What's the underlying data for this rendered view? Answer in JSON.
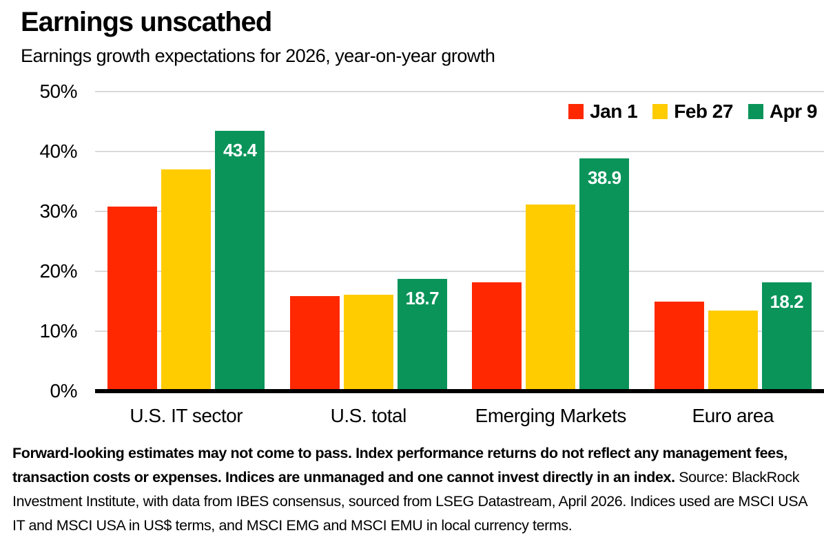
{
  "header": {
    "title": "Earnings unscathed",
    "subtitle": "Earnings growth expectations for 2026, year-on-year growth"
  },
  "chart_data": {
    "type": "bar",
    "title": "Earnings unscathed",
    "subtitle": "Earnings growth expectations for 2026, year-on-year growth",
    "categories": [
      "U.S. IT sector",
      "U.S. total",
      "Emerging Markets",
      "Euro area"
    ],
    "series": [
      {
        "name": "Jan 1",
        "color": "#FF2800",
        "values": [
          30.8,
          15.9,
          18.2,
          15.0
        ]
      },
      {
        "name": "Feb 27",
        "color": "#FFCC00",
        "values": [
          37.0,
          16.1,
          31.2,
          13.4
        ]
      },
      {
        "name": "Apr 9",
        "color": "#0A945A",
        "values": [
          43.4,
          18.7,
          38.9,
          18.2
        ],
        "labeled": true,
        "labels": [
          "43.4",
          "18.7",
          "38.9",
          "18.2"
        ],
        "label_color": "#ffffff"
      }
    ],
    "ylabel": "",
    "xlabel": "",
    "ylim": [
      0,
      50
    ],
    "yticks": [
      0,
      10,
      20,
      30,
      40,
      50
    ],
    "ytick_suffix": "%",
    "grid": true,
    "gridline_color": "#d9d9d9",
    "axis_line_color": "#000000",
    "legend_position": "top-right"
  },
  "footnote": {
    "disclaimer": "Forward-looking estimates may not come to pass. Index performance returns do not reflect any management fees, transaction costs or expenses. Indices are unmanaged and one cannot invest directly in an index. ",
    "source": "Source: BlackRock Investment Institute, with data from IBES consensus, sourced from LSEG Datastream, April 2026. Indices used are MSCI USA IT and MSCI USA in US$ terms, and MSCI EMG and MSCI EMU in local currency terms."
  }
}
